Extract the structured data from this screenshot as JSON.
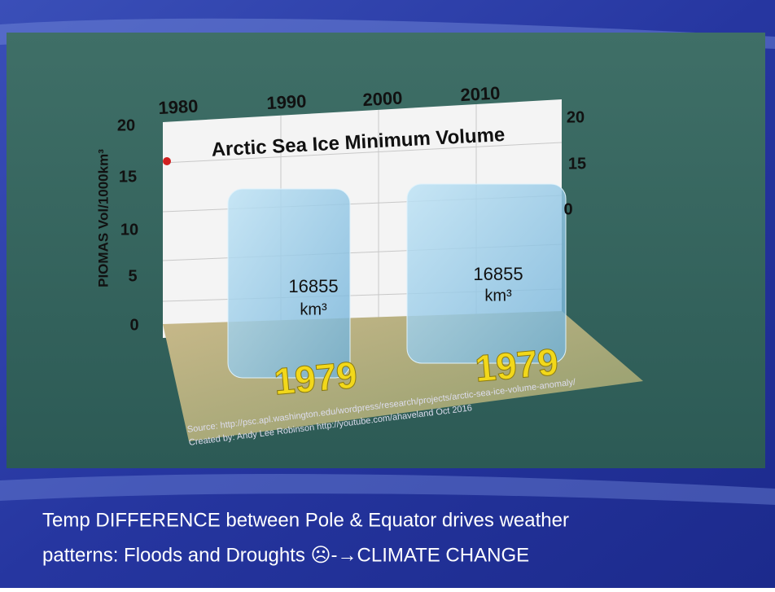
{
  "image": {
    "year_labels": [
      "1980",
      "1990",
      "2000",
      "2010"
    ],
    "left_axis_labels": [
      "20",
      "15",
      "10",
      "5",
      "0"
    ],
    "right_axis_labels": [
      "20",
      "15",
      "0"
    ],
    "axis_title": "PIOMAS Vol/1000km³",
    "title": "Arctic Sea Ice Minimum Volume",
    "cubes": [
      {
        "volume": "16855",
        "unit": "km³",
        "year": "1979"
      },
      {
        "volume": "16855",
        "unit": "km³",
        "year": "1979"
      }
    ],
    "source": [
      "Source: http://psc.apl.washington.edu/wordpress/research/projects/arctic-sea-ice-volume-anomaly/",
      "Created by: Andy Lee Robinson http://youtube.com/ahaveland Oct 2016"
    ]
  },
  "caption": [
    "Temp DIFFERENCE between Pole & Equator drives weather",
    "patterns: Floods and Droughts ☹-→CLIMATE CHANGE"
  ]
}
